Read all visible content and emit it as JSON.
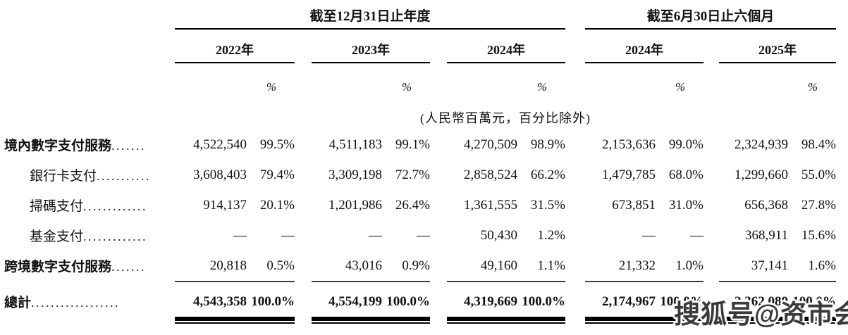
{
  "table": {
    "col_groups": [
      {
        "title": "截至12月31日止年度",
        "years": [
          "2022年",
          "2023年",
          "2024年"
        ]
      },
      {
        "title": "截至6月30日止六個月",
        "years": [
          "2024年",
          "2025年"
        ]
      }
    ],
    "percent_symbol": "%",
    "unit_note": "(人民幣百萬元，百分比除外)",
    "rows": [
      {
        "label": "境內數字支付服務",
        "dots": ".......",
        "values": [
          "4,522,540",
          "99.5%",
          "4,511,183",
          "99.1%",
          "4,270,509",
          "98.9%",
          "2,153,636",
          "99.0%",
          "2,324,939",
          "98.4%"
        ]
      },
      {
        "label": "銀行卡支付",
        "dots": "...........",
        "values": [
          "3,608,403",
          "79.4%",
          "3,309,198",
          "72.7%",
          "2,858,524",
          "66.2%",
          "1,479,785",
          "68.0%",
          "1,299,660",
          "55.0%"
        ]
      },
      {
        "label": "掃碼支付",
        "dots": ".............",
        "values": [
          "914,137",
          "20.1%",
          "1,201,986",
          "26.4%",
          "1,361,555",
          "31.5%",
          "673,851",
          "31.0%",
          "656,368",
          "27.8%"
        ]
      },
      {
        "label": "基金支付",
        "dots": ".............",
        "values": [
          "—",
          "—",
          "—",
          "—",
          "50,430",
          "1.2%",
          "—",
          "—",
          "368,911",
          "15.6%"
        ]
      },
      {
        "label": "跨境數字支付服務",
        "dots": ".......",
        "values": [
          "20,818",
          "0.5%",
          "43,016",
          "0.9%",
          "49,160",
          "1.1%",
          "21,332",
          "1.0%",
          "37,141",
          "1.6%"
        ]
      }
    ],
    "total_row": {
      "label": "總計",
      "dots": "..................",
      "values": [
        "4,543,358",
        "100.0%",
        "4,554,199",
        "100.0%",
        "4,319,669",
        "100.0%",
        "2,174,967",
        "100.0%",
        "2,362,080",
        "100.0%"
      ]
    }
  },
  "watermark": "搜狐号@资市会"
}
